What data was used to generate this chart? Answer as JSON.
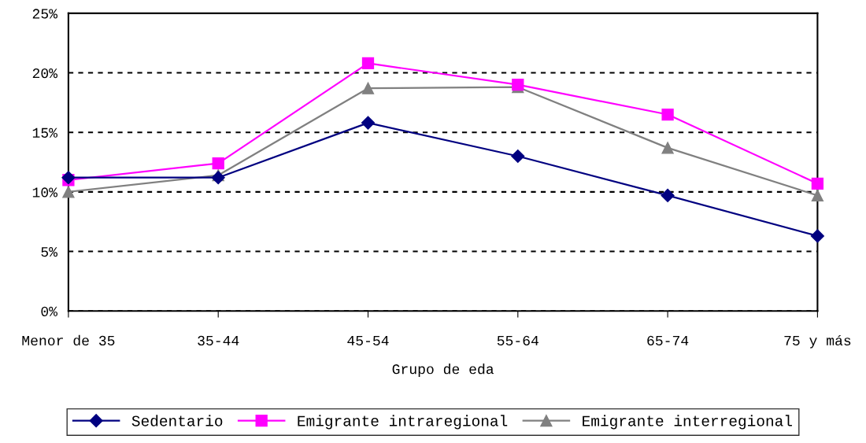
{
  "chart_data": {
    "type": "line",
    "xlabel": "Grupo de eda",
    "categories": [
      "Menor de 35",
      "35-44",
      "45-54",
      "55-64",
      "65-74",
      "75 y más"
    ],
    "series": [
      {
        "name": "Sedentario",
        "color": "#000080",
        "marker": "diamond",
        "values": [
          11.2,
          11.2,
          15.8,
          13.0,
          9.7,
          6.3
        ]
      },
      {
        "name": "Emigrante intraregional",
        "color": "#ff00ff",
        "marker": "square",
        "values": [
          11.0,
          12.4,
          20.8,
          19.0,
          16.5,
          10.7
        ]
      },
      {
        "name": "Emigrante interregional",
        "color": "#808080",
        "marker": "triangle",
        "values": [
          10.0,
          11.4,
          18.7,
          18.8,
          13.7,
          9.7
        ]
      }
    ],
    "ylim": [
      0,
      25
    ],
    "yticks": [
      {
        "value": 0,
        "label": "0%"
      },
      {
        "value": 5,
        "label": "5%"
      },
      {
        "value": 10,
        "label": "10%"
      },
      {
        "value": 15,
        "label": "15%"
      },
      {
        "value": 20,
        "label": "20%"
      },
      {
        "value": 25,
        "label": "25%"
      }
    ],
    "grid": "y",
    "legend": "bottom",
    "line_style": "solid"
  }
}
